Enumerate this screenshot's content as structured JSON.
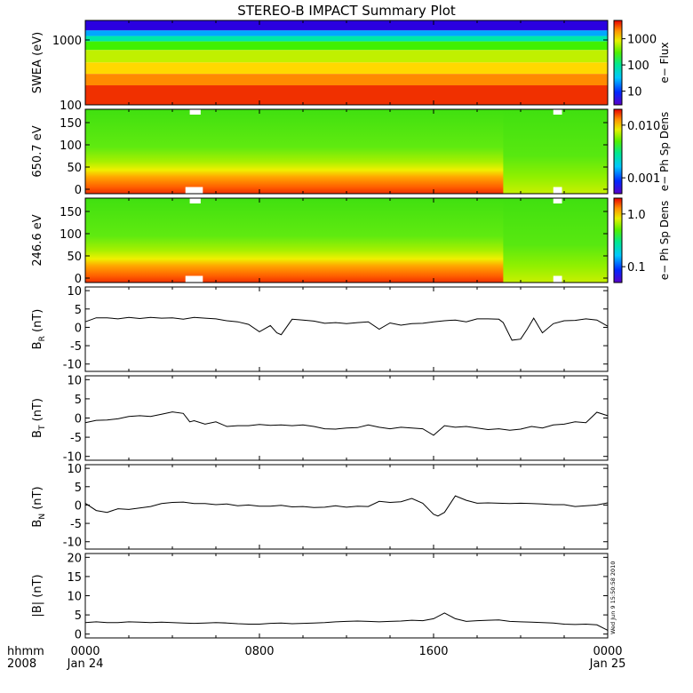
{
  "title": "STEREO-B IMPACT Summary Plot",
  "footer": {
    "left_top": "hhmm",
    "left_bottom": "2008",
    "ticks": [
      {
        "time": "0000",
        "date": "Jan 24",
        "x_hours": 0
      },
      {
        "time": "0800",
        "date": "",
        "x_hours": 8
      },
      {
        "time": "1600",
        "date": "",
        "x_hours": 16
      },
      {
        "time": "0000",
        "date": "Jan 25",
        "x_hours": 24
      }
    ],
    "timestamp": "Wed Jun 9 15:50:58 2010"
  },
  "chart_data": [
    {
      "type": "heatmap",
      "id": "swea",
      "ylabel": "SWEA (eV)",
      "yscale": "log",
      "ylim": [
        100,
        2000
      ],
      "yticks": [
        {
          "label": "1000",
          "value": 1000
        },
        {
          "label": "100",
          "value": 100
        }
      ],
      "colorbar": {
        "label": "e− Flux",
        "scale": "log",
        "range": [
          3,
          5000
        ],
        "ticks": [
          {
            "label": "1000",
            "value": 1000
          },
          {
            "label": "100",
            "value": 100
          },
          {
            "label": "10",
            "value": 10
          }
        ]
      },
      "bands": [
        {
          "from": 1400,
          "to": 2000,
          "color": "#2a00e0"
        },
        {
          "from": 1150,
          "to": 1400,
          "color": "#00a8ff"
        },
        {
          "from": 950,
          "to": 1150,
          "color": "#00e8a8"
        },
        {
          "from": 700,
          "to": 950,
          "color": "#40f000"
        },
        {
          "from": 450,
          "to": 700,
          "color": "#c0f000"
        },
        {
          "from": 300,
          "to": 450,
          "color": "#ffd800"
        },
        {
          "from": 200,
          "to": 300,
          "color": "#ff8a00"
        },
        {
          "from": 100,
          "to": 200,
          "color": "#f03000"
        }
      ]
    },
    {
      "type": "heatmap",
      "id": "pad650",
      "ylabel": "650.7 eV",
      "ylim": [
        -10,
        180
      ],
      "yticks": [
        {
          "label": "150",
          "value": 150
        },
        {
          "label": "100",
          "value": 100
        },
        {
          "label": "50",
          "value": 50
        },
        {
          "label": "0",
          "value": 0
        }
      ],
      "colorbar": {
        "label": "e− Ph Sp Dens",
        "scale": "log",
        "range": [
          0.0005,
          0.02
        ],
        "ticks": [
          {
            "label": "0.010",
            "value": 0.01
          },
          {
            "label": "0.001",
            "value": 0.001
          }
        ]
      },
      "low_band_hours": [
        [
          0,
          19.2
        ]
      ],
      "gaps": [
        {
          "t0": 4.8,
          "t1": 5.3,
          "v0": 168,
          "v1": 180
        },
        {
          "t0": 4.6,
          "t1": 5.4,
          "v0": -10,
          "v1": 5
        },
        {
          "t0": 21.5,
          "t1": 21.9,
          "v0": 168,
          "v1": 180
        },
        {
          "t0": 21.5,
          "t1": 21.9,
          "v0": -10,
          "v1": 5
        }
      ]
    },
    {
      "type": "heatmap",
      "id": "pad246",
      "ylabel": "246.6 eV",
      "ylim": [
        -10,
        180
      ],
      "yticks": [
        {
          "label": "150",
          "value": 150
        },
        {
          "label": "100",
          "value": 100
        },
        {
          "label": "50",
          "value": 50
        },
        {
          "label": "0",
          "value": 0
        }
      ],
      "colorbar": {
        "label": "e− Ph Sp Dens",
        "scale": "log",
        "range": [
          0.05,
          2
        ],
        "ticks": [
          {
            "label": "1.0",
            "value": 1.0
          },
          {
            "label": "0.1",
            "value": 0.1
          }
        ]
      },
      "low_band_hours": [
        [
          0,
          19.2
        ]
      ],
      "gaps": [
        {
          "t0": 4.8,
          "t1": 5.3,
          "v0": 168,
          "v1": 180
        },
        {
          "t0": 4.6,
          "t1": 5.4,
          "v0": -10,
          "v1": 5
        },
        {
          "t0": 21.5,
          "t1": 21.9,
          "v0": 168,
          "v1": 180
        },
        {
          "t0": 21.5,
          "t1": 21.9,
          "v0": -10,
          "v1": 5
        }
      ]
    },
    {
      "type": "line",
      "id": "br",
      "ylabel": "B",
      "ysub": "R",
      "yunit": " (nT)",
      "ylim": [
        -12,
        11
      ],
      "yticks": [
        10,
        5,
        0,
        -5,
        -10
      ],
      "x": [
        0,
        0.5,
        1,
        1.5,
        2,
        2.5,
        3,
        3.5,
        4,
        4.5,
        5,
        5.5,
        6,
        6.5,
        7,
        7.5,
        8,
        8.5,
        8.8,
        9,
        9.5,
        10,
        10.5,
        11,
        11.5,
        12,
        12.5,
        13,
        13.5,
        14,
        14.5,
        15,
        15.5,
        16,
        16.5,
        17,
        17.5,
        18,
        18.5,
        19,
        19.2,
        19.6,
        20,
        20.3,
        20.6,
        21,
        21.5,
        22,
        22.5,
        23,
        23.5,
        24
      ],
      "y": [
        1.5,
        2.6,
        2.6,
        2.3,
        2.7,
        2.4,
        2.7,
        2.5,
        2.6,
        2.2,
        2.7,
        2.5,
        2.3,
        1.8,
        1.5,
        0.8,
        -1.2,
        0.5,
        -1.5,
        -2,
        2.2,
        2,
        1.7,
        1.1,
        1.3,
        1,
        1.3,
        1.5,
        -0.5,
        1.2,
        0.6,
        1.0,
        1.1,
        1.5,
        1.8,
        2.0,
        1.5,
        2.3,
        2.3,
        2.2,
        1.3,
        -3.5,
        -3.2,
        -0.5,
        2.5,
        -1.5,
        1.0,
        1.8,
        1.9,
        2.3,
        2.0,
        0.3
      ]
    },
    {
      "type": "line",
      "id": "bt",
      "ylabel": "B",
      "ysub": "T",
      "yunit": " (nT)",
      "ylim": [
        -11,
        11
      ],
      "yticks": [
        10,
        5,
        0,
        -5,
        -10
      ],
      "x": [
        0,
        0.5,
        1,
        1.5,
        2,
        2.5,
        3,
        3.5,
        4,
        4.5,
        4.8,
        5,
        5.5,
        6,
        6.5,
        7,
        7.5,
        8,
        8.5,
        9,
        9.5,
        10,
        10.5,
        11,
        11.5,
        12,
        12.5,
        13,
        13.5,
        14,
        14.5,
        15,
        15.5,
        16,
        16.5,
        17,
        17.5,
        18,
        18.5,
        19,
        19.5,
        20,
        20.5,
        21,
        21.5,
        22,
        22.5,
        23,
        23.5,
        24
      ],
      "y": [
        -1.2,
        -0.6,
        -0.5,
        -0.2,
        0.4,
        0.6,
        0.4,
        1.0,
        1.6,
        1.2,
        -1.0,
        -0.7,
        -1.6,
        -1.0,
        -2.2,
        -2.0,
        -2.0,
        -1.7,
        -1.9,
        -1.8,
        -2.0,
        -1.8,
        -2.2,
        -2.8,
        -2.9,
        -2.6,
        -2.5,
        -1.8,
        -2.4,
        -2.8,
        -2.4,
        -2.6,
        -2.8,
        -4.5,
        -2.0,
        -2.4,
        -2.2,
        -2.6,
        -3.0,
        -2.8,
        -3.2,
        -2.9,
        -2.2,
        -2.6,
        -1.8,
        -1.6,
        -1.0,
        -1.2,
        1.5,
        0.6
      ]
    },
    {
      "type": "line",
      "id": "bn",
      "ylabel": "B",
      "ysub": "N",
      "yunit": " (nT)",
      "ylim": [
        -12,
        11
      ],
      "yticks": [
        10,
        5,
        0,
        -5,
        -10
      ],
      "x": [
        0,
        0.5,
        1,
        1.5,
        2,
        2.5,
        3,
        3.5,
        4,
        4.5,
        5,
        5.5,
        6,
        6.5,
        7,
        7.5,
        8,
        8.5,
        9,
        9.5,
        10,
        10.5,
        11,
        11.5,
        12,
        12.5,
        13,
        13.5,
        14,
        14.5,
        15,
        15.5,
        16,
        16.2,
        16.5,
        17,
        17.5,
        18,
        18.5,
        19,
        19.5,
        20,
        20.5,
        21,
        21.5,
        22,
        22.5,
        23,
        23.5,
        24
      ],
      "y": [
        0.5,
        -1.5,
        -2.0,
        -1.0,
        -1.2,
        -0.8,
        -0.4,
        0.4,
        0.7,
        0.8,
        0.4,
        0.4,
        0.1,
        0.3,
        -0.2,
        0.0,
        -0.3,
        -0.3,
        -0.1,
        -0.5,
        -0.4,
        -0.7,
        -0.6,
        -0.2,
        -0.6,
        -0.3,
        -0.4,
        1.0,
        0.7,
        0.9,
        1.8,
        0.5,
        -2.5,
        -3.0,
        -2.0,
        2.5,
        1.3,
        0.5,
        0.6,
        0.5,
        0.4,
        0.5,
        0.4,
        0.3,
        0.1,
        0.1,
        -0.4,
        -0.2,
        0.0,
        0.6
      ]
    },
    {
      "type": "line",
      "id": "bmag",
      "ylabel": "|B| (nT)",
      "ylim": [
        -1,
        21
      ],
      "yticks": [
        20,
        15,
        10,
        5,
        0
      ],
      "x": [
        0,
        0.5,
        1,
        1.5,
        2,
        2.5,
        3,
        3.5,
        4,
        4.5,
        5,
        5.5,
        6,
        6.5,
        7,
        7.5,
        8,
        8.5,
        9,
        9.5,
        10,
        10.5,
        11,
        11.5,
        12,
        12.5,
        13,
        13.5,
        14,
        14.5,
        15,
        15.5,
        16,
        16.5,
        17,
        17.5,
        18,
        18.5,
        19,
        19.5,
        20,
        20.5,
        21,
        21.5,
        22,
        22.5,
        23,
        23.5,
        24
      ],
      "y": [
        3.0,
        3.2,
        3.0,
        3.0,
        3.2,
        3.1,
        3.0,
        3.1,
        3.0,
        2.9,
        2.8,
        2.9,
        3.0,
        2.9,
        2.7,
        2.6,
        2.6,
        2.8,
        2.9,
        2.7,
        2.8,
        2.9,
        3.0,
        3.2,
        3.3,
        3.4,
        3.3,
        3.2,
        3.3,
        3.4,
        3.6,
        3.5,
        4.0,
        5.5,
        4.0,
        3.3,
        3.5,
        3.6,
        3.7,
        3.3,
        3.2,
        3.1,
        3.0,
        2.9,
        2.6,
        2.5,
        2.6,
        2.4,
        1.0
      ]
    }
  ]
}
